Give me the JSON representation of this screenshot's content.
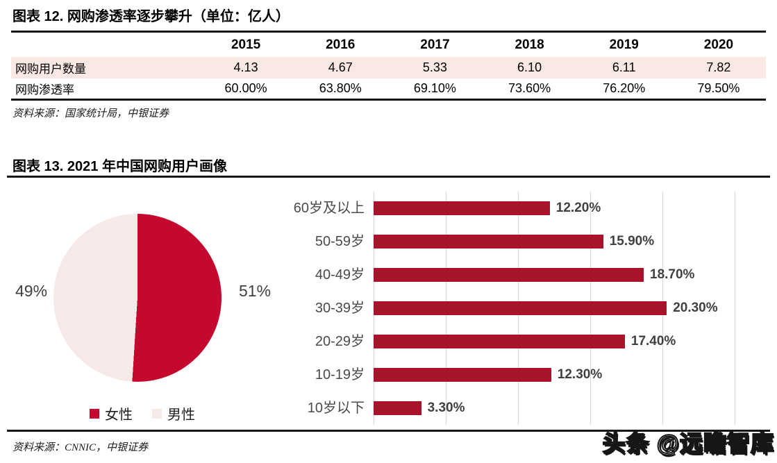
{
  "colors": {
    "bar_red": "#A9122B",
    "pie_red": "#C5092E",
    "pie_pink": "#F7E9E8",
    "table_row_pink": "#FAE8E5",
    "gridline": "#D9D9D9"
  },
  "fig12": {
    "title": "图表 12. 网购渗透率逐步攀升（单位：亿人）",
    "source": "资料来源：国家统计局，中银证券"
  },
  "fig13": {
    "title": "图表 13. 2021 年中国网购用户画像",
    "source": "资料来源：CNNIC，中银证券",
    "watermark": "头条 @远瞻智库"
  },
  "chart_data": [
    {
      "type": "table",
      "title": "网购渗透率逐步攀升（单位：亿人）",
      "columns": [
        "2015",
        "2016",
        "2017",
        "2018",
        "2019",
        "2020"
      ],
      "rows": [
        {
          "label": "网购用户数量",
          "values": [
            "4.13",
            "4.67",
            "5.33",
            "6.10",
            "6.11",
            "7.82"
          ],
          "highlight": true
        },
        {
          "label": "网购渗透率",
          "values": [
            "60.00%",
            "63.80%",
            "69.10%",
            "73.60%",
            "76.20%",
            "79.50%"
          ],
          "highlight": false
        }
      ]
    },
    {
      "type": "pie",
      "labels": [
        "女性",
        "男性"
      ],
      "values": [
        51,
        49
      ],
      "display_values": [
        "51%",
        "49%"
      ],
      "side_labels": {
        "left": "49%",
        "right": "51%"
      },
      "colors": [
        "#C5092E",
        "#F7E9E8"
      ],
      "start_angle": "top",
      "direction": "clockwise",
      "legend_position": "bottom"
    },
    {
      "type": "bar",
      "orientation": "horizontal",
      "categories": [
        "60岁及以上",
        "50-59岁",
        "40-49岁",
        "30-39岁",
        "20-29岁",
        "10-19岁",
        "10岁以下"
      ],
      "values": [
        12.2,
        15.9,
        18.7,
        20.3,
        17.4,
        12.3,
        3.3
      ],
      "value_labels": [
        "12.20%",
        "15.90%",
        "18.70%",
        "20.30%",
        "17.40%",
        "12.30%",
        "3.30%"
      ],
      "xlim": [
        0,
        25
      ],
      "grid_step": 5,
      "grid": true,
      "bar_color": "#A9122B"
    }
  ]
}
